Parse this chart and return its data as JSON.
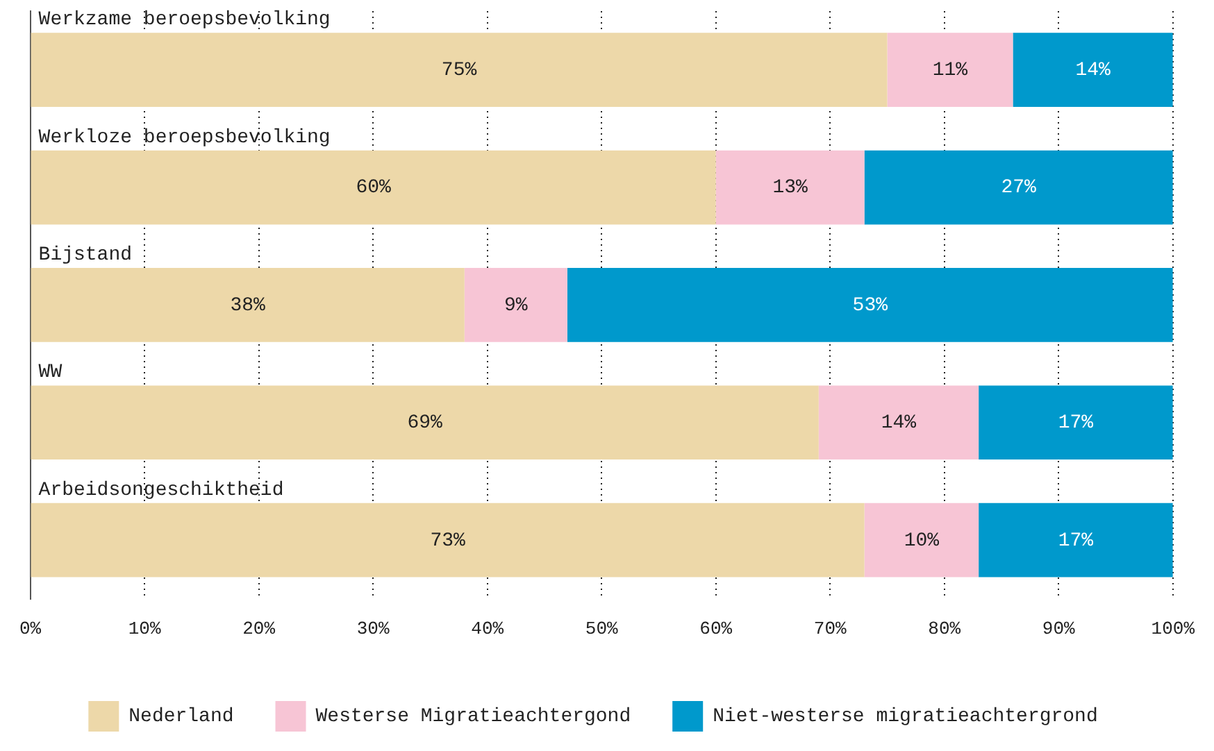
{
  "chart_data": {
    "type": "bar",
    "orientation": "horizontal",
    "stacked": true,
    "categories": [
      "Werkzame beroepsbevolking",
      "Werkloze beroepsbevolking",
      "Bijstand",
      "WW",
      "Arbeidsongeschiktheid"
    ],
    "series": [
      {
        "name": "Nederland",
        "color": "#edd8a9",
        "values": [
          75,
          60,
          38,
          69,
          73
        ]
      },
      {
        "name": "Westerse Migratieachtergond",
        "color": "#f7c5d5",
        "values": [
          11,
          13,
          9,
          14,
          10
        ]
      },
      {
        "name": "Niet-westerse migratieachtergrond",
        "color": "#0099cc",
        "values": [
          14,
          27,
          53,
          17,
          17
        ]
      }
    ],
    "xlim": [
      0,
      100
    ],
    "xticks": [
      {
        "value": 0,
        "label": "0%"
      },
      {
        "value": 10,
        "label": "10%"
      },
      {
        "value": 20,
        "label": "20%"
      },
      {
        "value": 30,
        "label": "30%"
      },
      {
        "value": 40,
        "label": "40%"
      },
      {
        "value": 50,
        "label": "50%"
      },
      {
        "value": 60,
        "label": "60%"
      },
      {
        "value": 70,
        "label": "70%"
      },
      {
        "value": 80,
        "label": "80%"
      },
      {
        "value": 90,
        "label": "90%"
      },
      {
        "value": 100,
        "label": "100%"
      }
    ],
    "value_labels": [
      [
        "75%",
        "60%",
        "38%",
        "69%",
        "73%"
      ],
      [
        "11%",
        "13%",
        "9%",
        "14%",
        "10%"
      ],
      [
        "14%",
        "27%",
        "53%",
        "17%",
        "17%"
      ]
    ],
    "grid": "x",
    "legend": "bottom"
  }
}
